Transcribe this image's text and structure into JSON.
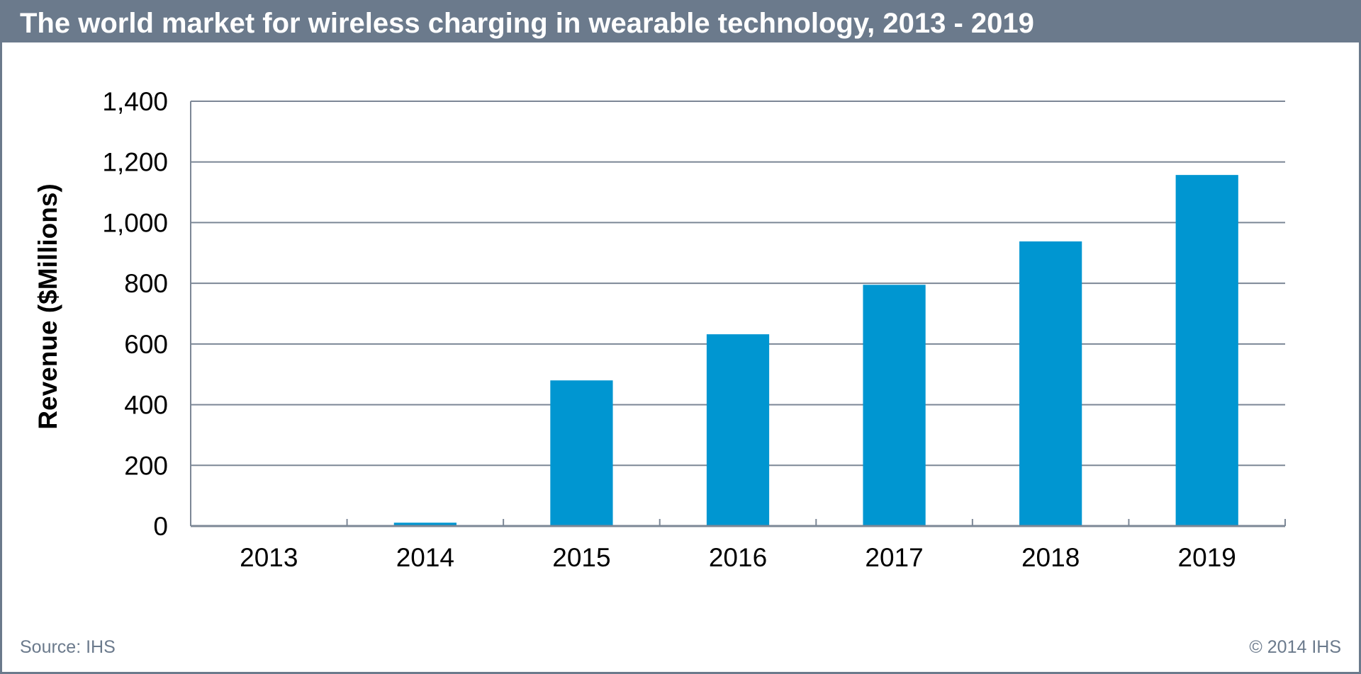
{
  "header": {
    "title": "The world market for wireless charging in wearable technology, 2013 - 2019"
  },
  "footer": {
    "source": "Source: IHS",
    "copyright": "© 2014 IHS"
  },
  "colors": {
    "bar": "#0096d1",
    "frame": "#6b7a8c",
    "grid": "#7c8796",
    "text": "#000000"
  },
  "chart_data": {
    "type": "bar",
    "title": "The world market for wireless charging in wearable technology, 2013 - 2019",
    "xlabel": "",
    "ylabel": "Revenue ($Millions)",
    "categories": [
      "2013",
      "2014",
      "2015",
      "2016",
      "2017",
      "2018",
      "2019"
    ],
    "values": [
      3,
      11,
      480,
      632,
      795,
      938,
      1157
    ],
    "ylim": [
      0,
      1400
    ],
    "yticks": [
      0,
      200,
      400,
      600,
      800,
      1000,
      1200,
      1400
    ],
    "ytick_labels": [
      "0",
      "200",
      "400",
      "600",
      "800",
      "1,000",
      "1,200",
      "1,400"
    ],
    "grid": true,
    "legend": "none"
  }
}
